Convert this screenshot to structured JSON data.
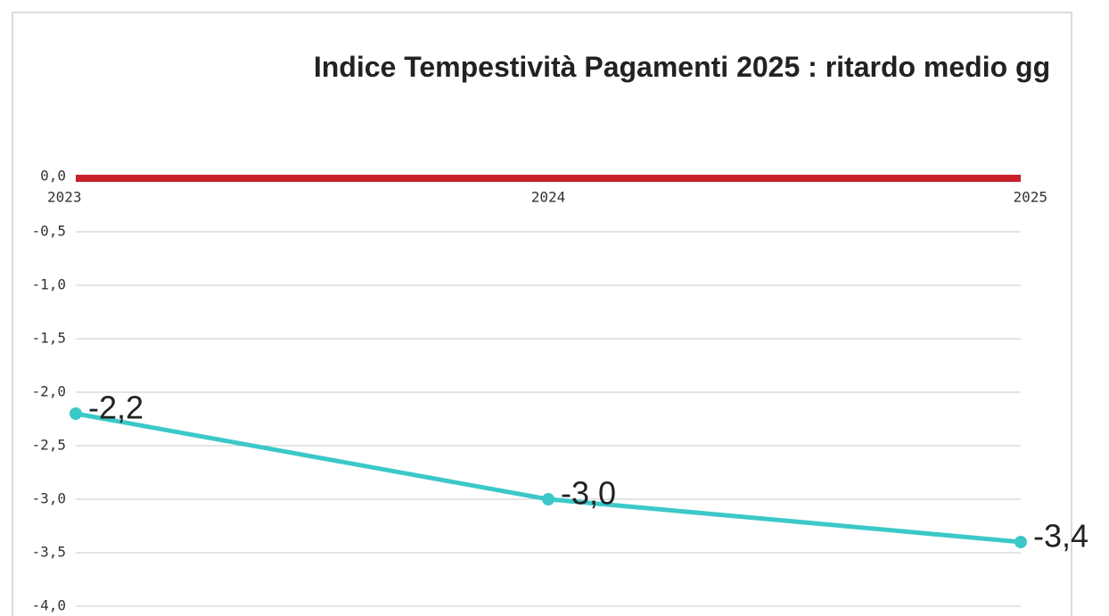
{
  "chart_data": {
    "type": "line",
    "title": "Indice Tempestività Pagamenti 2025 : ritardo medio gg",
    "categories": [
      "2023",
      "2024",
      "2025"
    ],
    "series": [
      {
        "name": null,
        "color": "#3cc8c8",
        "values": [
          -2.2,
          -3.0,
          -3.4
        ],
        "value_labels": [
          "-2,2",
          "-3,0",
          "-3,4"
        ]
      }
    ],
    "ylim": [
      -4.0,
      0.0
    ],
    "yticks": [
      {
        "value": 0,
        "label": "0,0"
      },
      {
        "value": -0.5,
        "label": "-0,5"
      },
      {
        "value": -1.0,
        "label": "-1,0"
      },
      {
        "value": -1.5,
        "label": "-1,5"
      },
      {
        "value": -2.0,
        "label": "-2,0"
      },
      {
        "value": -2.5,
        "label": "-2,5"
      },
      {
        "value": -3.0,
        "label": "-3,0"
      },
      {
        "value": -3.5,
        "label": "-3,5"
      },
      {
        "value": -4.0,
        "label": "-4,0"
      }
    ],
    "axis_color": "#c8202a",
    "grid": true
  }
}
